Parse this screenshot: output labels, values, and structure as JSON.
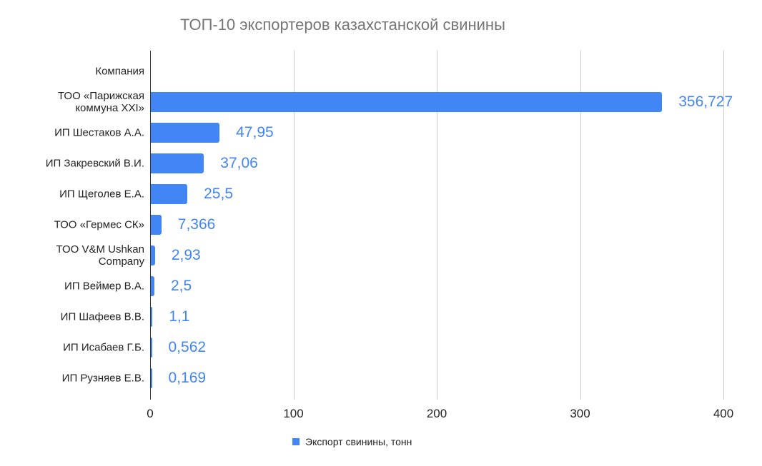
{
  "chart_data": {
    "type": "bar",
    "orientation": "horizontal",
    "title": "ТОП-10 экспортеров казахстанской свинины",
    "xlabel": "",
    "ylabel": "",
    "header_category": "Компания",
    "categories": [
      "ТОО «Парижская коммуна XXI»",
      "ИП Шестаков А.А.",
      "ИП Закревский В.И.",
      "ИП Щеголев Е.А.",
      "ТОО «Гермес СК»",
      "ТОО V&M Ushkan Company",
      "ИП Веймер В.А.",
      "ИП Шафеев В.В.",
      "ИП Исабаев Г.Б.",
      "ИП Рузняев Е.В."
    ],
    "series": [
      {
        "name": "Экспорт свинины, тонн",
        "color": "#4285f4",
        "values": [
          356.727,
          47.95,
          37.06,
          25.5,
          7.366,
          2.93,
          2.5,
          1.1,
          0.562,
          0.169
        ],
        "labels": [
          "356,727",
          "47,95",
          "37,06",
          "25,5",
          "7,366",
          "2,93",
          "2,5",
          "1,1",
          "0,562",
          "0,169"
        ]
      }
    ],
    "xlim": [
      0,
      400
    ],
    "xticks": [
      "0",
      "100",
      "200",
      "300",
      "400"
    ],
    "grid": true,
    "legend_position": "bottom"
  },
  "category_lines": [
    [
      "ТОО «Парижская",
      "коммуна XXI»"
    ],
    [
      "ИП Шестаков А.А."
    ],
    [
      "ИП Закревский В.И."
    ],
    [
      "ИП Щеголев Е.А."
    ],
    [
      "ТОО «Гермес СК»"
    ],
    [
      "ТОО V&M Ushkan",
      "Company"
    ],
    [
      "ИП Веймер В.А."
    ],
    [
      "ИП Шафеев В.В."
    ],
    [
      "ИП Исабаев Г.Б."
    ],
    [
      "ИП Рузняев Е.В."
    ]
  ]
}
